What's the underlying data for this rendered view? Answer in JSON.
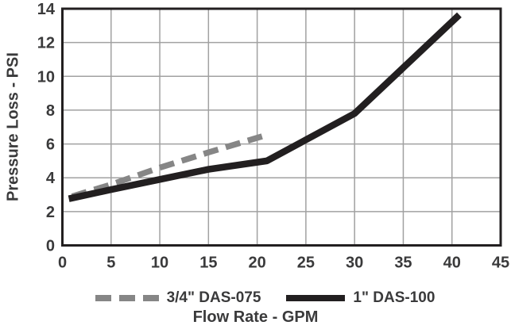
{
  "chart_data": {
    "type": "line",
    "xlabel": "Flow Rate - GPM",
    "ylabel": "Pressure Loss - PSI",
    "grid": true,
    "legend_position": "bottom",
    "frame_color": "#221f20",
    "grid_color": "#a1a1a1",
    "text_color": "#3a3a3b",
    "x_axis": {
      "min": 0,
      "max": 45,
      "tick_step": 5,
      "ticks": [
        0,
        5,
        10,
        15,
        20,
        25,
        30,
        35,
        40,
        45
      ]
    },
    "y_axis": {
      "min": 0,
      "max": 14,
      "tick_step": 2,
      "ticks": [
        0,
        2,
        4,
        6,
        8,
        10,
        12,
        14
      ]
    },
    "series": [
      {
        "name": "3/4\" DAS-075",
        "style": "dashed",
        "color": "#868686",
        "points": [
          [
            1,
            2.9
          ],
          [
            5,
            3.6
          ],
          [
            10,
            4.6
          ],
          [
            15,
            5.5
          ],
          [
            20.5,
            6.45
          ]
        ]
      },
      {
        "name": "1\" DAS-100",
        "style": "solid",
        "color": "#221f20",
        "points": [
          [
            1,
            2.8
          ],
          [
            5,
            3.3
          ],
          [
            10,
            3.9
          ],
          [
            15,
            4.5
          ],
          [
            21,
            5.0
          ],
          [
            30,
            7.8
          ],
          [
            40.5,
            13.5
          ]
        ]
      }
    ]
  }
}
